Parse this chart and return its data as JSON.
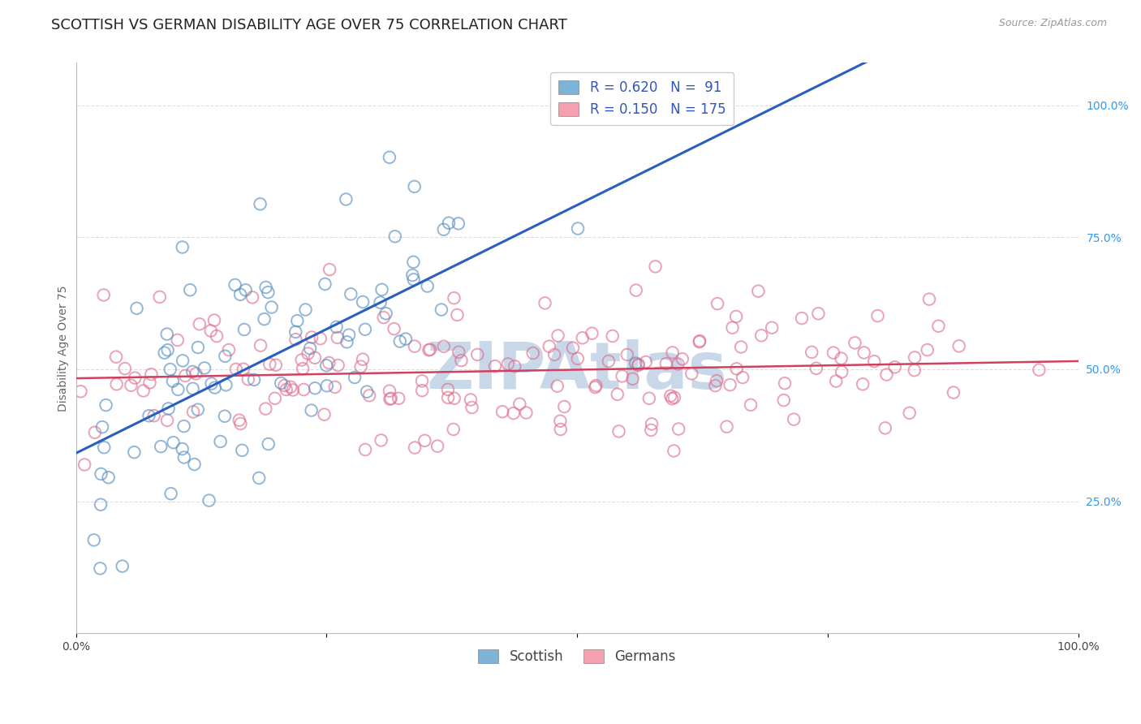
{
  "title": "SCOTTISH VS GERMAN DISABILITY AGE OVER 75 CORRELATION CHART",
  "source": "Source: ZipAtlas.com",
  "ylabel": "Disability Age Over 75",
  "blue_R": 0.62,
  "blue_N": 91,
  "pink_R": 0.15,
  "pink_N": 175,
  "blue_color": "#7EB3D8",
  "pink_color": "#F4A0B0",
  "blue_edge_color": "#5A90C0",
  "pink_edge_color": "#E07090",
  "blue_line_color": "#2B5FBF",
  "pink_line_color": "#D04060",
  "watermark": "ZIPAtlas",
  "watermark_color": "#C8D8E8",
  "xlim": [
    0,
    1
  ],
  "ylim": [
    0,
    1.08
  ],
  "ytick_labels_right": [
    "25.0%",
    "50.0%",
    "75.0%",
    "100.0%"
  ],
  "ytick_positions_right": [
    0.25,
    0.5,
    0.75,
    1.0
  ],
  "background_color": "#FFFFFF",
  "grid_color": "#DDDDDD",
  "title_fontsize": 13,
  "axis_label_fontsize": 10,
  "tick_fontsize": 10,
  "legend_fontsize": 12
}
